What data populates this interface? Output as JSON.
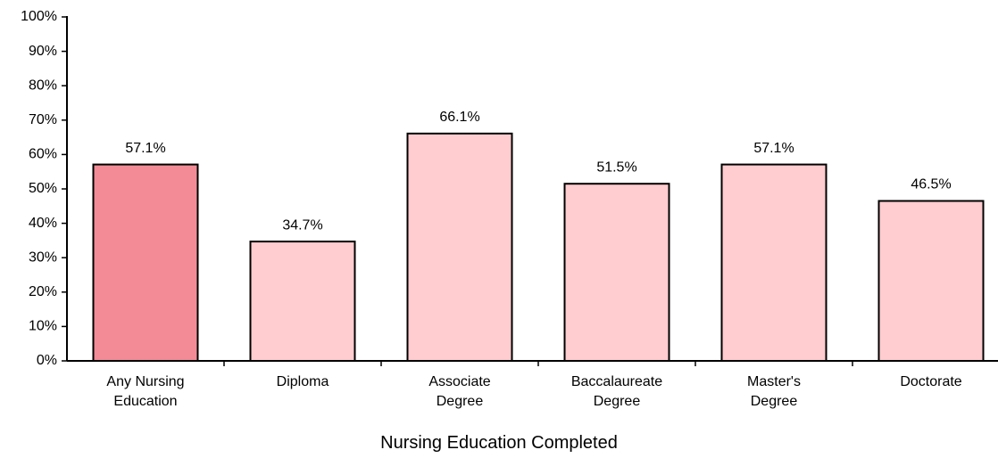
{
  "chart_data": {
    "type": "bar",
    "xlabel": "Nursing Education Completed",
    "categories": [
      "Any Nursing\nEducation",
      "Diploma",
      "Associate\nDegree",
      "Baccalaureate\nDegree",
      "Master's\nDegree",
      "Doctorate"
    ],
    "values": [
      57.1,
      34.7,
      66.1,
      51.5,
      57.1,
      46.5
    ],
    "value_labels": [
      "57.1%",
      "34.7%",
      "66.1%",
      "51.5%",
      "57.1%",
      "46.5%"
    ],
    "colors": [
      "#f28b96",
      "#ffcccf",
      "#ffcccf",
      "#ffcccf",
      "#ffcccf",
      "#ffcccf"
    ],
    "ylim": [
      0,
      100
    ],
    "yticks": [
      {
        "value": 0,
        "label": "0%"
      },
      {
        "value": 10,
        "label": "10%"
      },
      {
        "value": 20,
        "label": "20%"
      },
      {
        "value": 30,
        "label": "30%"
      },
      {
        "value": 40,
        "label": "40%"
      },
      {
        "value": 50,
        "label": "50%"
      },
      {
        "value": 60,
        "label": "60%"
      },
      {
        "value": 70,
        "label": "70%"
      },
      {
        "value": 80,
        "label": "80%"
      },
      {
        "value": 90,
        "label": "90%"
      },
      {
        "value": 100,
        "label": "100%"
      }
    ],
    "grid": false
  }
}
